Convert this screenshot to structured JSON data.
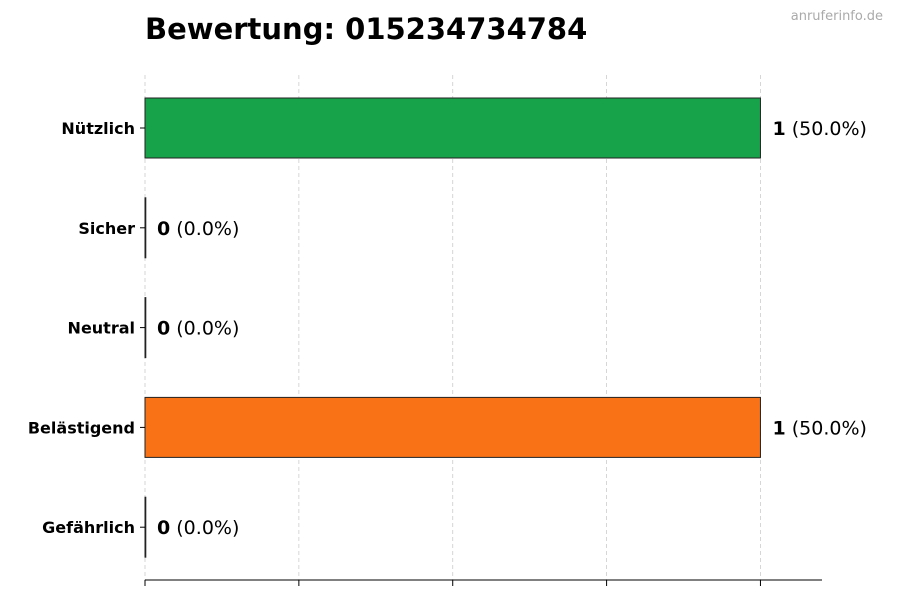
{
  "watermark": "anruferinfo.de",
  "chart_data": {
    "type": "bar",
    "orientation": "horizontal",
    "title": "Bewertung: 015234734784",
    "categories": [
      "Nützlich",
      "Sicher",
      "Neutral",
      "Belästigend",
      "Gefährlich"
    ],
    "values": [
      1,
      0,
      0,
      1,
      0
    ],
    "labels": [
      {
        "count": "1",
        "pct": "(50.0%)"
      },
      {
        "count": "0",
        "pct": "(0.0%)"
      },
      {
        "count": "0",
        "pct": "(0.0%)"
      },
      {
        "count": "1",
        "pct": "(50.0%)"
      },
      {
        "count": "0",
        "pct": "(0.0%)"
      }
    ],
    "colors": [
      "#16a34a",
      "#16a34a",
      "#9ca3af",
      "#f97316",
      "#dc2626"
    ],
    "xlim": [
      0,
      1.1
    ],
    "xticks": [
      0,
      0.25,
      0.5,
      0.75,
      1
    ],
    "grid": "x-dashed",
    "xlabel": "",
    "ylabel": ""
  }
}
